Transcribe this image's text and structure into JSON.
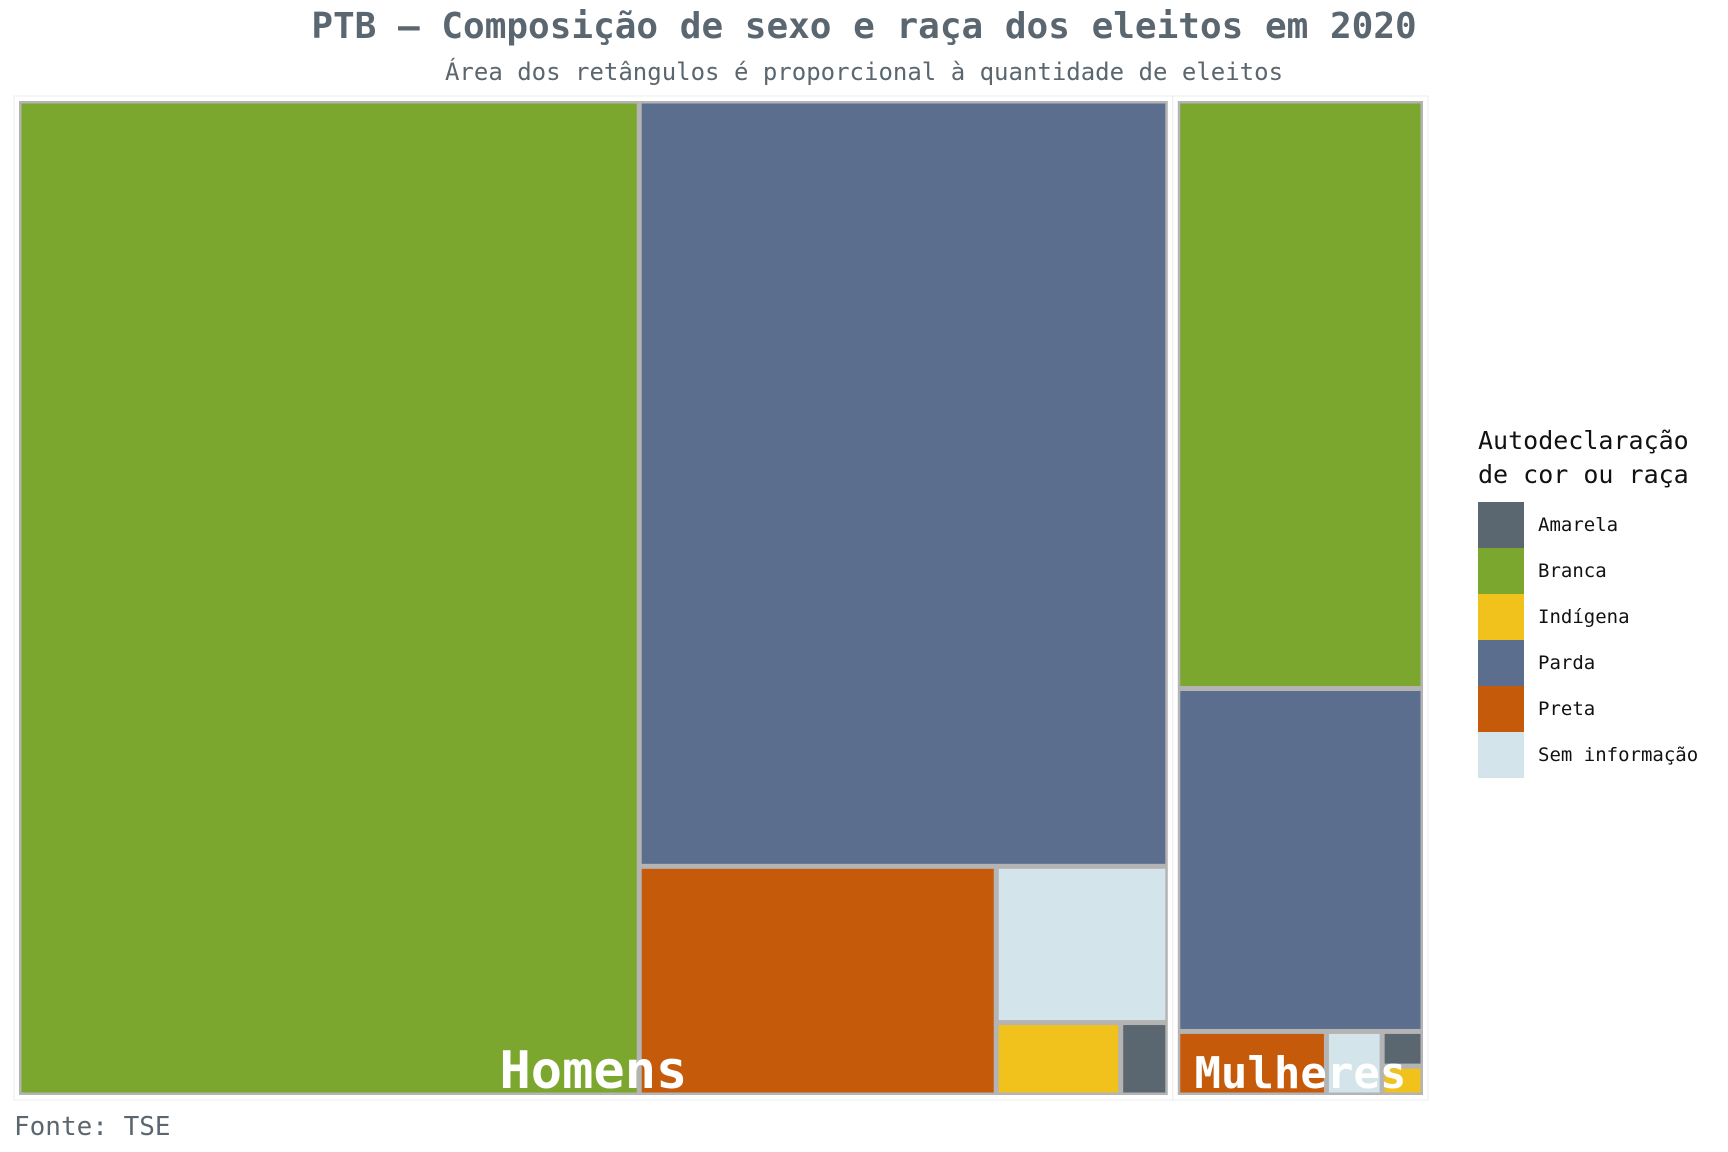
{
  "chart_data": {
    "type": "treemap",
    "title": "PTB – Composição de sexo e raça dos eleitos em 2020",
    "subtitle": "Área dos retângulos é proporcional à quantidade de eleitos",
    "source": "Fonte: TSE",
    "legend_title": "Autodeclaração\nde cor ou raça",
    "legend_position": "right",
    "categories": [
      {
        "name": "Amarela",
        "color": "#5b6770"
      },
      {
        "name": "Branca",
        "color": "#7ca72e"
      },
      {
        "name": "Indígena",
        "color": "#f1c21b"
      },
      {
        "name": "Parda",
        "color": "#5b6e8d"
      },
      {
        "name": "Preta",
        "color": "#c55a0b"
      },
      {
        "name": "Sem informação",
        "color": "#d4e4eb"
      }
    ],
    "groups": [
      {
        "name": "Homens",
        "values": {
          "Branca": 2530,
          "Parda": 1660,
          "Preta": 335,
          "Sem informação": 110,
          "Indígena": 37,
          "Amarela": 14
        }
      },
      {
        "name": "Mulheres",
        "values": {
          "Branca": 610,
          "Parda": 356,
          "Preta": 40,
          "Sem informação": 15,
          "Amarela": 6,
          "Indígena": 5
        }
      }
    ]
  }
}
